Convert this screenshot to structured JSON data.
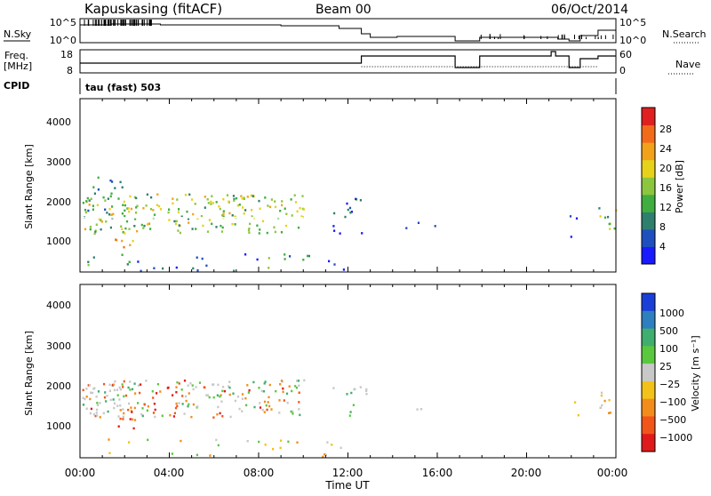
{
  "header": {
    "station": "Kapuskasing (fitACF)",
    "beam": "Beam 00",
    "date": "06/Oct/2014"
  },
  "panels": {
    "nsky_label": "N.Sky",
    "nsearch_label": "N.Search",
    "nsky_ticks": [
      "10^5",
      "10^0"
    ],
    "nsearch_ticks": [
      "10^5",
      "10^0"
    ],
    "freq_label": "Freq.",
    "freq_unit": "[MHz]",
    "freq_ticks": [
      "18",
      "8"
    ],
    "nave_label": "Nave",
    "nave_ticks": [
      "60",
      "0"
    ],
    "cpid_label": "CPID",
    "cpid_value": "tau (fast) 503"
  },
  "chart_data": [
    {
      "type": "heatmap",
      "name": "Power",
      "ylabel": "Slant Range [km]",
      "yticks": [
        "1000",
        "2000",
        "3000",
        "4000"
      ],
      "ylim": [
        200,
        4600
      ],
      "xlim": [
        0,
        24
      ],
      "colorbar_label": "Power [dB]",
      "colorbar_ticks": [
        "4",
        "8",
        "12",
        "16",
        "20",
        "24",
        "28"
      ],
      "colorbar_range": [
        0,
        32
      ],
      "colors": [
        "#1a1aff",
        "#1f4fbf",
        "#2e7f6e",
        "#3fae3f",
        "#8cc63f",
        "#e6d21a",
        "#f2a21a",
        "#f26b1a",
        "#e02020"
      ]
    },
    {
      "type": "heatmap",
      "name": "Velocity",
      "ylabel": "Slant Range [km]",
      "yticks": [
        "1000",
        "2000",
        "3000",
        "4000"
      ],
      "ylim": [
        200,
        4600
      ],
      "xlim": [
        0,
        24
      ],
      "colorbar_label": "Velocity [m s⁻¹]",
      "colorbar_ticks": [
        "1000",
        "500",
        "100",
        "25",
        "−25",
        "−100",
        "−500",
        "−1000"
      ],
      "colors": [
        "#1a3fd9",
        "#2e7fbf",
        "#3fae6e",
        "#5ac83f",
        "#c8c8c8",
        "#f2c21a",
        "#f28c1a",
        "#f2551a",
        "#e01a1a"
      ]
    }
  ],
  "time_axis": {
    "ticks": [
      "00:00",
      "04:00",
      "08:00",
      "12:00",
      "16:00",
      "20:00",
      "00:00"
    ],
    "label": "Time UT"
  }
}
